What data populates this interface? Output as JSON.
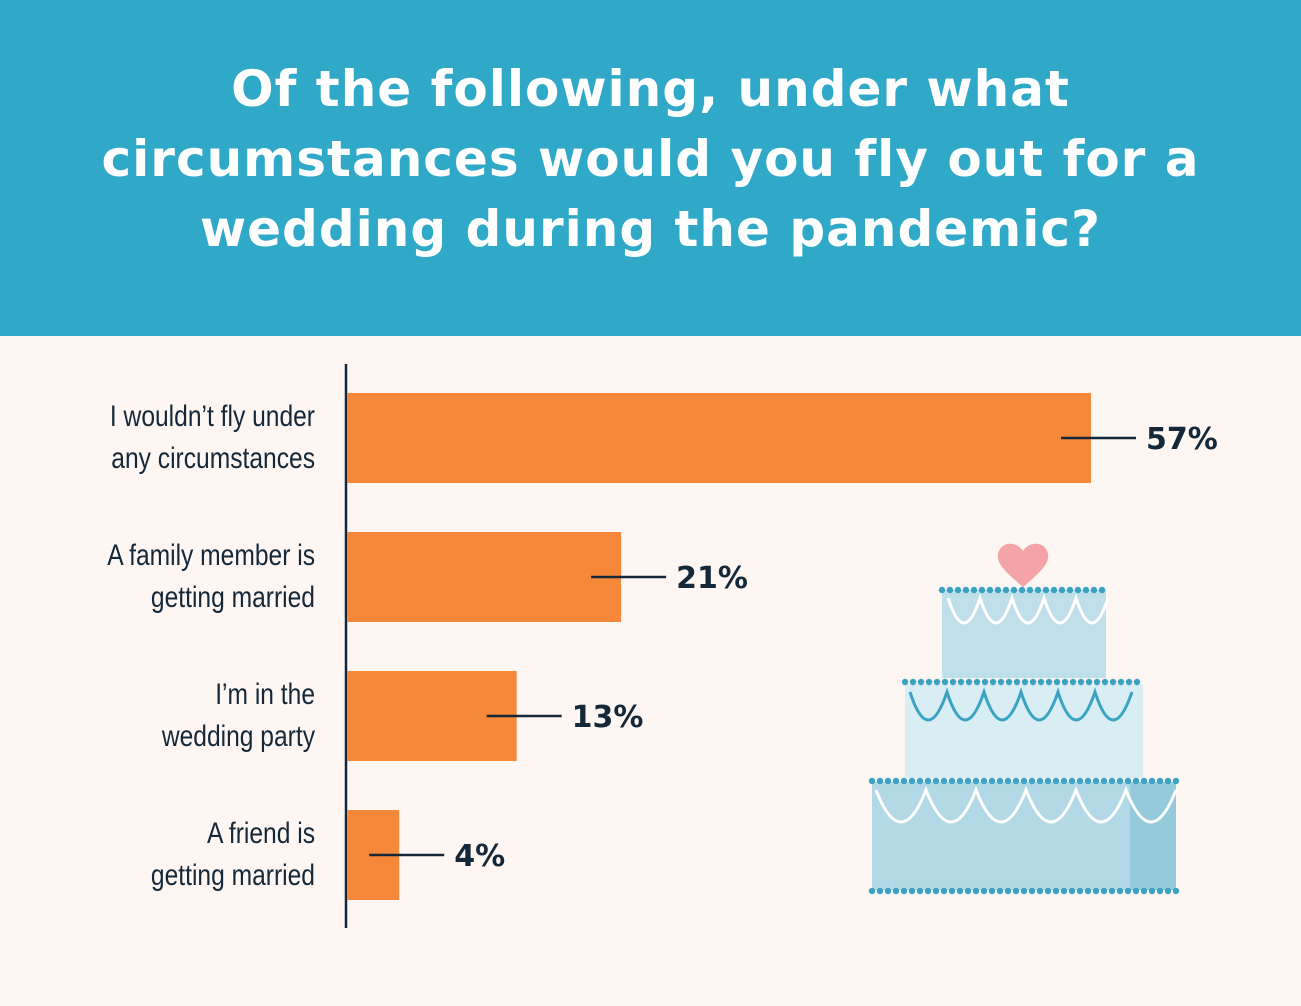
{
  "header": {
    "title": "Of the following, under what circumstances would you fly out for a wedding during the pandemic?"
  },
  "colors": {
    "header_bg": "#30a9c9",
    "background": "#fdf6f2",
    "bar": "#f6883a",
    "text": "#14283a",
    "cake_light": "#cfe6ee",
    "cake_mid": "#a9d4e3",
    "cake_dots": "#3aa3c4",
    "heart": "#f4a3a6"
  },
  "chart_data": {
    "type": "bar",
    "orientation": "horizontal",
    "categories": [
      "I wouldn’t fly under any circumstances",
      "A family member is getting married",
      "I’m in the wedding party",
      "A friend is getting married"
    ],
    "category_lines": [
      [
        "I wouldn’t fly under",
        "any circumstances"
      ],
      [
        "A family member is",
        "getting married"
      ],
      [
        "I’m in the",
        "wedding party"
      ],
      [
        "A friend is",
        "getting married"
      ]
    ],
    "values": [
      57,
      21,
      13,
      4
    ],
    "value_labels": [
      "57%",
      "21%",
      "13%",
      "4%"
    ],
    "unit": "%",
    "xlim": [
      0,
      100
    ],
    "grid": false,
    "legend": "none"
  },
  "decoration": {
    "illustration": "wedding-cake-icon"
  }
}
